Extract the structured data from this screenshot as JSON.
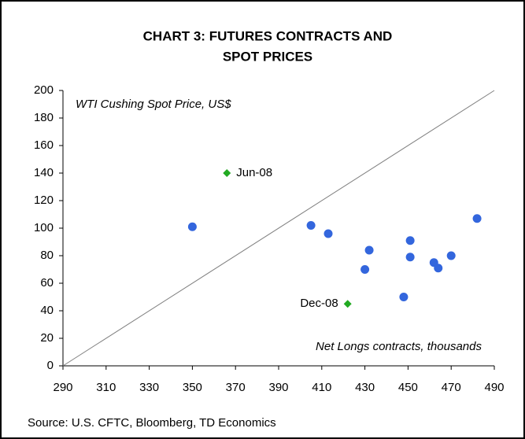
{
  "chart_data": {
    "type": "scatter",
    "title": [
      "CHART 3: FUTURES CONTRACTS AND",
      "SPOT PRICES"
    ],
    "y_label": "WTI Cushing Spot Price, US$",
    "x_label": "Net Longs contracts, thousands",
    "source": "Source: U.S. CFTC, Bloomberg, TD Economics",
    "xlim": [
      290,
      490
    ],
    "ylim": [
      0,
      200
    ],
    "xticks": [
      290,
      310,
      330,
      350,
      370,
      390,
      410,
      430,
      450,
      470,
      490
    ],
    "yticks": [
      0,
      20,
      40,
      60,
      80,
      100,
      120,
      140,
      160,
      180,
      200
    ],
    "reference_line": {
      "x": [
        290,
        490
      ],
      "y": [
        0,
        200
      ],
      "color": "#808080"
    },
    "series": [
      {
        "color": "#3366dd",
        "marker": "circle",
        "x": [
          350,
          405,
          413,
          432,
          430,
          451,
          451,
          448,
          462,
          464,
          470,
          482
        ],
        "values": [
          101,
          102,
          96,
          84,
          70,
          91,
          79,
          50,
          75,
          71,
          80,
          107
        ]
      },
      {
        "color": "#22aa22",
        "marker": "diamond",
        "x": [
          366,
          422
        ],
        "values": [
          140,
          45
        ],
        "labels": [
          "Jun-08",
          "Dec-08"
        ]
      }
    ]
  }
}
